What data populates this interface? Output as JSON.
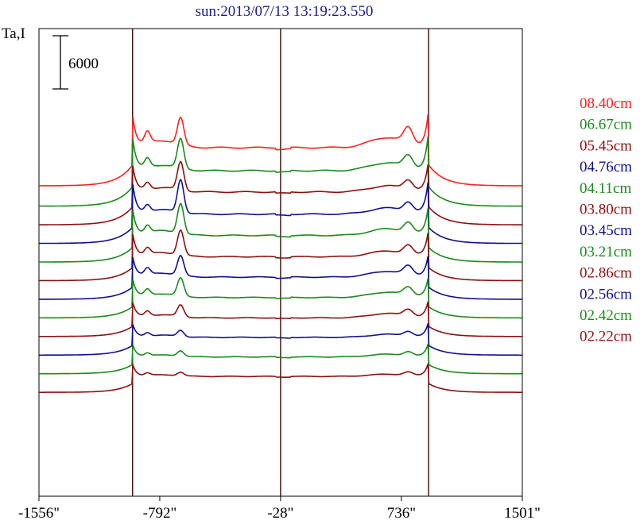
{
  "title": "sun:2013/07/13 13:19:23.550",
  "chart_data": {
    "type": "line",
    "ylabel": "Ta,I",
    "scale_bar_label": "6000",
    "scale_bar_value": 6000,
    "x_ticks": [
      "-1556\"",
      "-792\"",
      "-28\"",
      "736\"",
      "1501\""
    ],
    "x_tick_values": [
      -1556,
      -792,
      -28,
      736,
      1501
    ],
    "xlim": [
      -1556,
      1501
    ],
    "markers": [
      -964,
      -28,
      908
    ],
    "grid": false,
    "legend_position": "right",
    "series": [
      {
        "name": "08.40cm",
        "color": "#ff2020",
        "offset": 0,
        "peak_height": 8700,
        "plateau": 4300,
        "inner_peak": 7300,
        "bump": 6600
      },
      {
        "name": "06.67cm",
        "color": "#1a8a1a",
        "offset": -2300,
        "peak_height": 8500,
        "plateau": 4000,
        "inner_peak": 7300,
        "bump": 5800
      },
      {
        "name": "05.45cm",
        "color": "#8b1010",
        "offset": -4400,
        "peak_height": 7300,
        "plateau": 3700,
        "inner_peak": 6900,
        "bump": 5100
      },
      {
        "name": "04.76cm",
        "color": "#101090",
        "offset": -6500,
        "peak_height": 7500,
        "plateau": 3300,
        "inner_peak": 7000,
        "bump": 4700
      },
      {
        "name": "04.11cm",
        "color": "#1a8a1a",
        "offset": -8600,
        "peak_height": 6600,
        "plateau": 3000,
        "inner_peak": 6400,
        "bump": 4500
      },
      {
        "name": "03.80cm",
        "color": "#8b1010",
        "offset": -10700,
        "peak_height": 5900,
        "plateau": 2700,
        "inner_peak": 5500,
        "bump": 4000
      },
      {
        "name": "03.45cm",
        "color": "#101090",
        "offset": -12800,
        "peak_height": 5300,
        "plateau": 2500,
        "inner_peak": 4700,
        "bump": 3800
      },
      {
        "name": "03.21cm",
        "color": "#1a8a1a",
        "offset": -14900,
        "peak_height": 4800,
        "plateau": 2300,
        "inner_peak": 4300,
        "bump": 3500
      },
      {
        "name": "02.86cm",
        "color": "#8b1010",
        "offset": -17000,
        "peak_height": 4200,
        "plateau": 2100,
        "inner_peak": 3400,
        "bump": 3100
      },
      {
        "name": "02.56cm",
        "color": "#101090",
        "offset": -19100,
        "peak_height": 3800,
        "plateau": 2000,
        "inner_peak": 2700,
        "bump": 2700
      },
      {
        "name": "02.42cm",
        "color": "#1a8a1a",
        "offset": -21200,
        "peak_height": 3600,
        "plateau": 1900,
        "inner_peak": 2500,
        "bump": 2500
      },
      {
        "name": "02.22cm",
        "color": "#8b1010",
        "offset": -23300,
        "peak_height": 3500,
        "plateau": 1800,
        "inner_peak": 2200,
        "bump": 2300
      }
    ]
  }
}
